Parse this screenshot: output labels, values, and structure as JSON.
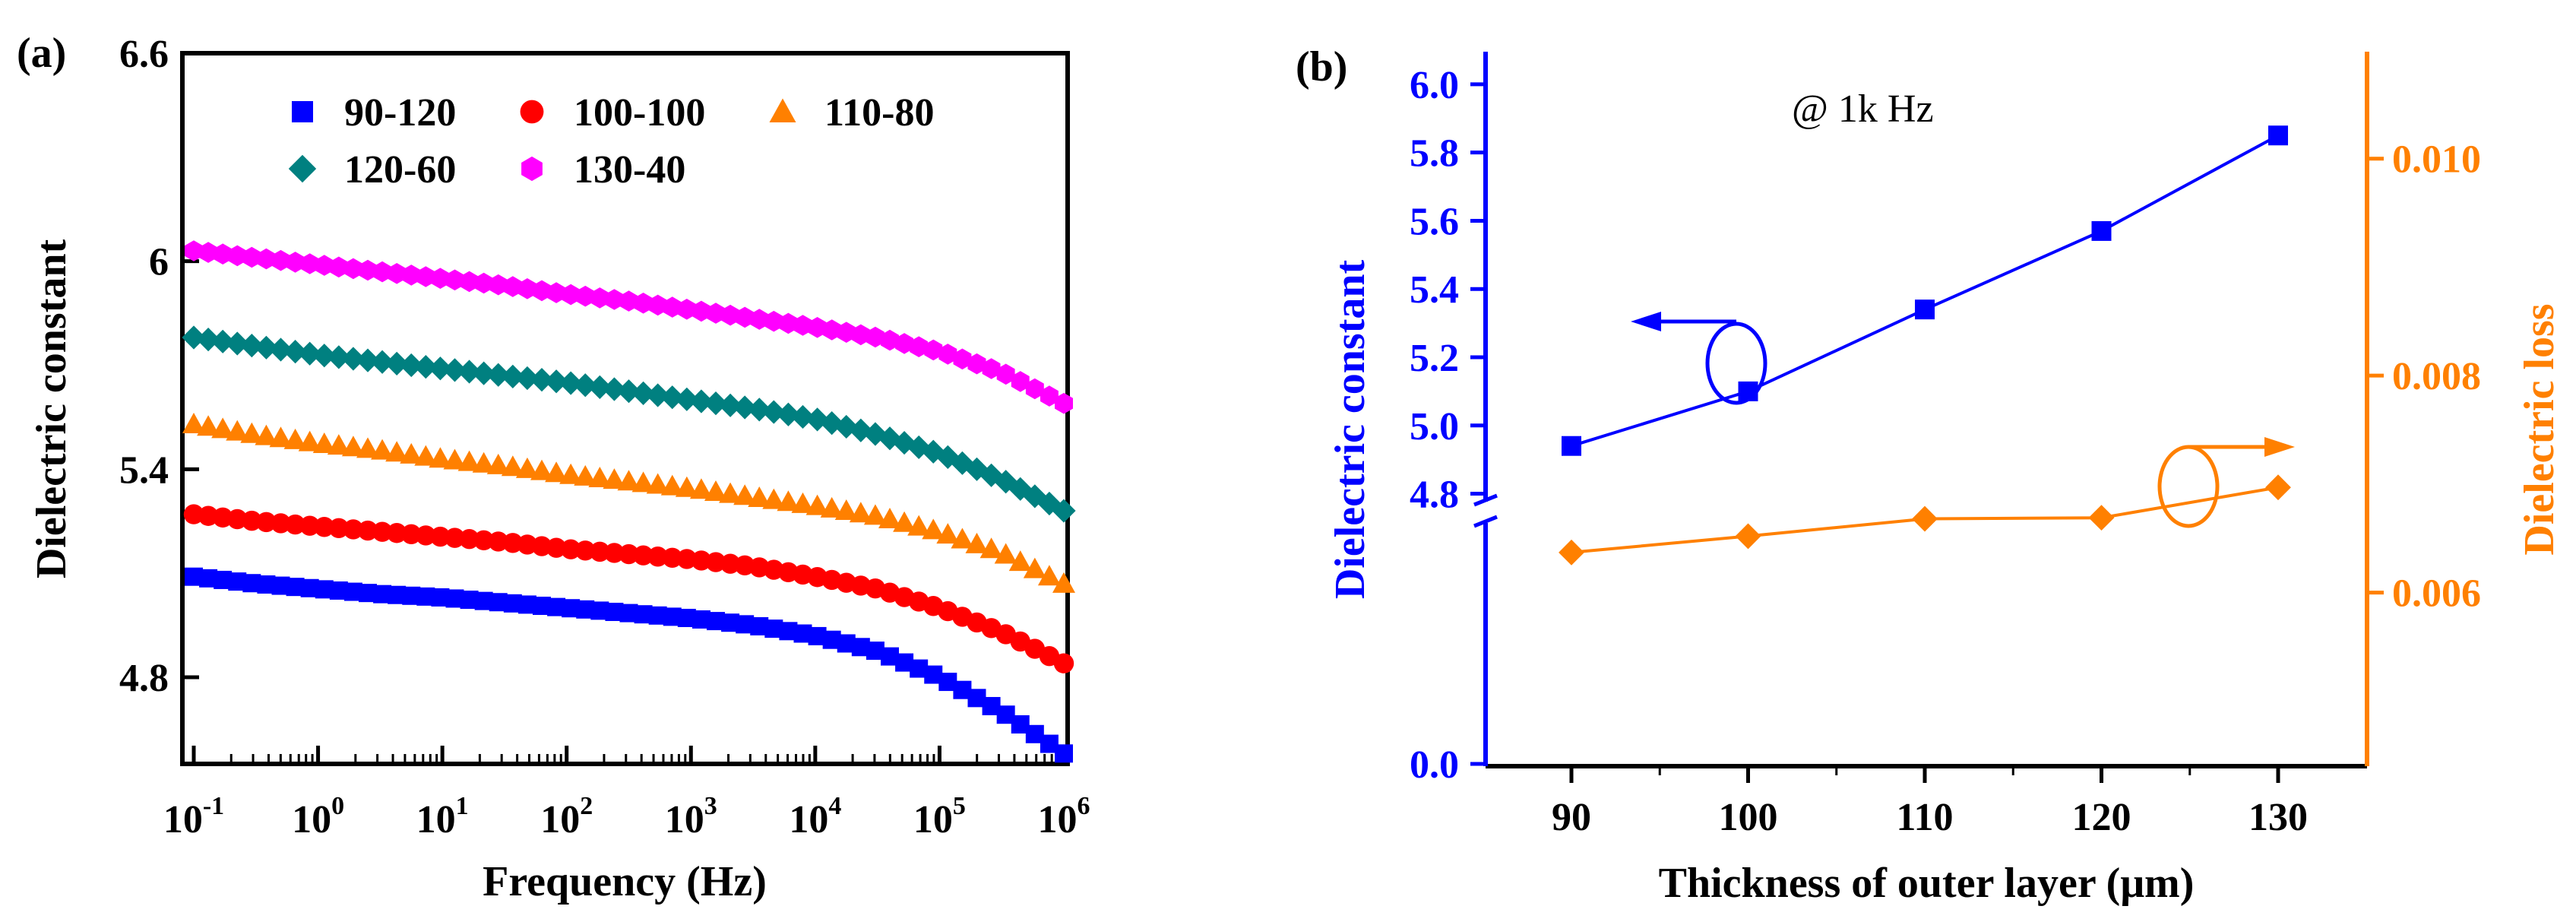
{
  "chart_data": [
    {
      "panel_label": "(a)",
      "type": "scatter",
      "title": "",
      "xlabel": "Frequency (Hz)",
      "ylabel": "Dielectric constant",
      "x_scale": "log",
      "xlim": [
        0.1,
        1000000
      ],
      "ylim": [
        4.55,
        6.6
      ],
      "xticks": [
        {
          "base": "10",
          "exp": "-1"
        },
        {
          "base": "10",
          "exp": "0"
        },
        {
          "base": "10",
          "exp": "1"
        },
        {
          "base": "10",
          "exp": "2"
        },
        {
          "base": "10",
          "exp": "3"
        },
        {
          "base": "10",
          "exp": "4"
        },
        {
          "base": "10",
          "exp": "5"
        },
        {
          "base": "10",
          "exp": "6"
        }
      ],
      "yticks": [
        {
          "value": 4.8,
          "label": "4.8"
        },
        {
          "value": 5.4,
          "label": "5.4"
        },
        {
          "value": 6.0,
          "label": "6"
        },
        {
          "value": 6.6,
          "label": "6.6"
        }
      ],
      "legend_position": "top",
      "x_log": [
        -1,
        -0.5,
        0,
        0.5,
        1,
        1.5,
        2,
        2.5,
        3,
        3.5,
        4,
        4.5,
        5,
        5.5,
        6
      ],
      "series": [
        {
          "name": "90-120",
          "marker": "square",
          "color": "#0000FF",
          "values": [
            5.09,
            5.07,
            5.055,
            5.04,
            5.03,
            5.015,
            5.0,
            4.985,
            4.97,
            4.95,
            4.92,
            4.875,
            4.8,
            4.7,
            4.58
          ]
        },
        {
          "name": "100-100",
          "marker": "circle",
          "color": "#FF0000",
          "values": [
            5.27,
            5.25,
            5.235,
            5.22,
            5.205,
            5.19,
            5.17,
            5.155,
            5.14,
            5.12,
            5.09,
            5.055,
            5.0,
            4.93,
            4.84
          ]
        },
        {
          "name": "110-80",
          "marker": "triangle",
          "color": "#FF8000",
          "values": [
            5.53,
            5.5,
            5.475,
            5.455,
            5.43,
            5.41,
            5.385,
            5.365,
            5.345,
            5.32,
            5.295,
            5.265,
            5.22,
            5.16,
            5.07
          ]
        },
        {
          "name": "120-60",
          "marker": "diamond",
          "color": "#008080",
          "values": [
            5.78,
            5.755,
            5.73,
            5.71,
            5.69,
            5.67,
            5.65,
            5.625,
            5.6,
            5.575,
            5.545,
            5.5,
            5.445,
            5.37,
            5.28
          ]
        },
        {
          "name": "130-40",
          "marker": "hexagon",
          "color": "#FF00FF",
          "values": [
            6.03,
            6.01,
            5.99,
            5.97,
            5.95,
            5.93,
            5.905,
            5.885,
            5.86,
            5.835,
            5.81,
            5.78,
            5.74,
            5.68,
            5.59
          ]
        }
      ]
    },
    {
      "panel_label": "(b)",
      "type": "line",
      "title": "",
      "annotation": "@ 1k Hz",
      "xlabel": "Thickness of outer layer (μm)",
      "ylabel": "Dielectric constant",
      "y2label": "Dielectric loss",
      "xlim": [
        85,
        135
      ],
      "x": [
        90,
        100,
        110,
        120,
        130
      ],
      "xticks": [
        90,
        100,
        110,
        120,
        130
      ],
      "ylim_upper": [
        4.75,
        6.1
      ],
      "ylim_break": [
        0,
        4.75
      ],
      "yticks": [
        "0.0",
        "4.8",
        "5.0",
        "5.2",
        "5.4",
        "5.6",
        "5.8",
        "6.0"
      ],
      "y2lim": [
        0.0044,
        0.011
      ],
      "y2ticks": [
        "0.006",
        "0.008",
        "0.010"
      ],
      "series": [
        {
          "name": "Dielectric constant",
          "axis": "left",
          "marker": "square",
          "color": "#0000FF",
          "values": [
            4.94,
            5.1,
            5.34,
            5.57,
            5.85
          ]
        },
        {
          "name": "Dielectric loss",
          "axis": "right",
          "marker": "diamond",
          "color": "#FF8000",
          "values": [
            0.00637,
            0.00652,
            0.00668,
            0.00669,
            0.00697
          ]
        }
      ]
    }
  ]
}
